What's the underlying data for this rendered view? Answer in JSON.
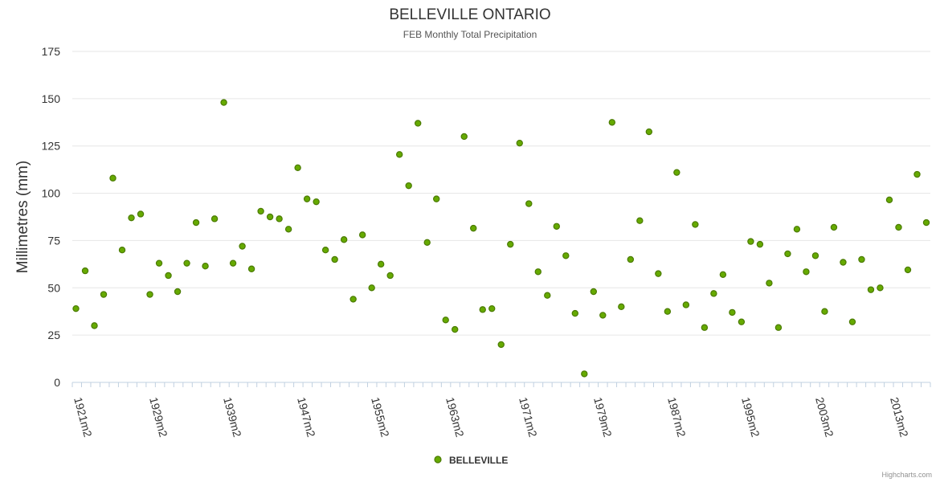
{
  "chart_data": {
    "type": "scatter",
    "title": "BELLEVILLE ONTARIO",
    "subtitle": "FEB Monthly Total Precipitation",
    "ylabel": "Millimetres (mm)",
    "xlabel": "",
    "ylim": [
      0,
      175
    ],
    "yticks": [
      "0",
      "25",
      "50",
      "75",
      "100",
      "125",
      "150",
      "175"
    ],
    "xtick_labels": [
      "1921m2",
      "1929m2",
      "1939m2",
      "1947m2",
      "1955m2",
      "1963m2",
      "1971m2",
      "1979m2",
      "1987m2",
      "1995m2",
      "2003m2",
      "2013m2"
    ],
    "grid": true,
    "legend_position": "bottom-center",
    "color": "#66aa00",
    "marker_stroke": "#4a7a00",
    "series": [
      {
        "name": "BELLEVILLE",
        "values": [
          39,
          59,
          30,
          46.5,
          108,
          70,
          87,
          89,
          46.5,
          63,
          56.5,
          48,
          63,
          84.5,
          61.5,
          86.5,
          148,
          63,
          72,
          60,
          90.5,
          87.5,
          86.5,
          81,
          113.5,
          97,
          95.5,
          70,
          65,
          75.5,
          44,
          78,
          50,
          62.5,
          56.5,
          120.5,
          104,
          137,
          74,
          97,
          33,
          28,
          130,
          81.5,
          38.5,
          39,
          20,
          73,
          126.5,
          94.5,
          58.5,
          46,
          82.5,
          67,
          36.5,
          4.5,
          48,
          35.5,
          137.5,
          40,
          65,
          85.5,
          132.5,
          57.5,
          37.5,
          111,
          41,
          83.5,
          29,
          47,
          57,
          37,
          32,
          74.5,
          73,
          52.5,
          29,
          68,
          81,
          58.5,
          67,
          37.5,
          82,
          63.5,
          32,
          65,
          49,
          50,
          96.5,
          82,
          59.5,
          110,
          84.5
        ]
      }
    ]
  },
  "credits": "Highcharts.com"
}
